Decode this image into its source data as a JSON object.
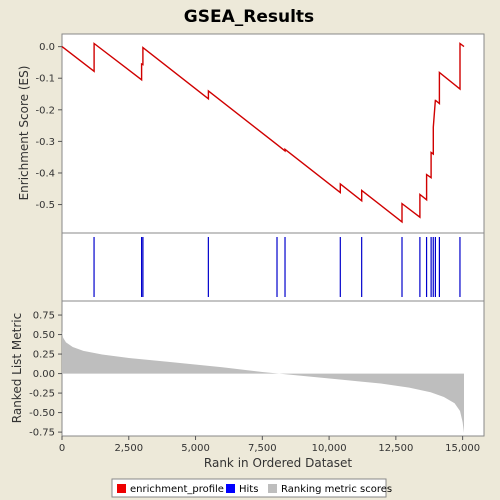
{
  "chart_data": {
    "type": "line",
    "title": "GSEA_Results",
    "colors": {
      "background": "#EDE9D9",
      "plot_bg": "#FFFFFF",
      "enrichment_profile": "#D00000",
      "hits": "#0000CC",
      "ranking": "#BEBEBE"
    },
    "legend": [
      {
        "name": "enrichment_profile",
        "color": "#EE0000"
      },
      {
        "name": "Hits",
        "color": "#0000FF"
      },
      {
        "name": "Ranking metric scores",
        "color": "#BEBEBE"
      }
    ],
    "legend_placement": "bottom",
    "es_panel": {
      "ylabel": "Enrichment Score (ES)",
      "ylim": [
        -0.59,
        0.04
      ],
      "yticks": [
        0.0,
        -0.1,
        -0.2,
        -0.3,
        -0.4,
        -0.5
      ],
      "ytick_labels": [
        "0.0",
        "-0.1",
        "-0.2",
        "-0.3",
        "-0.4",
        "-0.5"
      ],
      "series": [
        {
          "name": "enrichment_profile",
          "x": [
            0,
            1200,
            1200,
            2980,
            2980,
            3030,
            3030,
            5480,
            5480,
            8050,
            8050,
            8350,
            8350,
            10420,
            10420,
            11220,
            11220,
            12730,
            12730,
            13400,
            13400,
            13650,
            13650,
            13820,
            13820,
            13900,
            13900,
            13980,
            13980,
            14130,
            14130,
            14900,
            14900,
            15050
          ],
          "y": [
            0.0,
            -0.078,
            0.01,
            -0.105,
            -0.055,
            -0.057,
            -0.003,
            -0.165,
            -0.14,
            -0.31,
            -0.31,
            -0.33,
            -0.325,
            -0.462,
            -0.435,
            -0.488,
            -0.455,
            -0.555,
            -0.497,
            -0.54,
            -0.468,
            -0.485,
            -0.405,
            -0.415,
            -0.335,
            -0.34,
            -0.255,
            -0.168,
            -0.17,
            -0.18,
            -0.082,
            -0.134,
            0.01,
            0.0
          ]
        }
      ]
    },
    "hits_panel": {
      "positions": [
        1200,
        2980,
        3030,
        5480,
        8050,
        8350,
        10420,
        11220,
        12730,
        13400,
        13650,
        13820,
        13900,
        13980,
        14130,
        14900
      ]
    },
    "rank_panel": {
      "ylabel": "Ranked List Metric",
      "ylim": [
        -0.8,
        0.93
      ],
      "yticks": [
        0.75,
        0.5,
        0.25,
        0.0,
        -0.25,
        -0.5,
        -0.75
      ],
      "ytick_labels": [
        "0.75",
        "0.50",
        "0.25",
        "0.00",
        "-0.25",
        "-0.50",
        "-0.75"
      ],
      "curve_points": {
        "x": [
          0,
          40,
          150,
          400,
          800,
          1500,
          2500,
          4000,
          6000,
          7500,
          9000,
          10500,
          12000,
          13000,
          13800,
          14300,
          14700,
          14900,
          15000,
          15050
        ],
        "y": [
          0.55,
          0.46,
          0.4,
          0.34,
          0.29,
          0.245,
          0.2,
          0.15,
          0.08,
          0.02,
          -0.03,
          -0.08,
          -0.13,
          -0.18,
          -0.24,
          -0.3,
          -0.38,
          -0.48,
          -0.62,
          -0.76
        ]
      }
    },
    "x_axis": {
      "label": "Rank in Ordered Dataset",
      "xlim": [
        0,
        15800
      ],
      "ticks": [
        0,
        2500,
        5000,
        7500,
        10000,
        12500,
        15000
      ],
      "tick_labels": [
        "0",
        "2,500",
        "5,000",
        "7,500",
        "10,000",
        "12,500",
        "15,000"
      ]
    }
  }
}
